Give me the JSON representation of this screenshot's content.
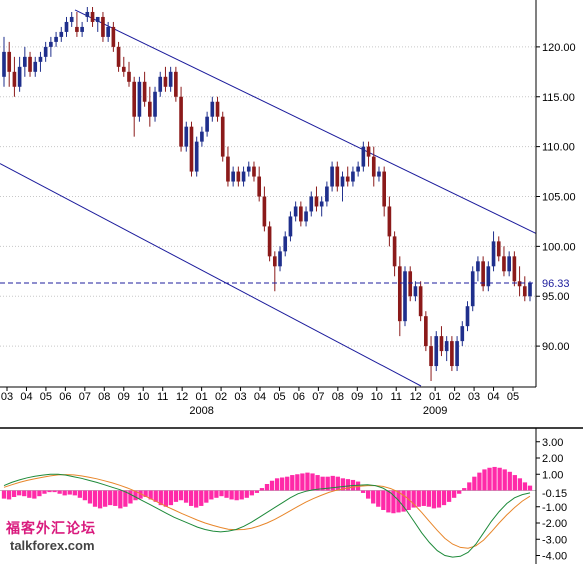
{
  "colors": {
    "bull_body": "#1f2f8c",
    "bear_body": "#8b1a1a",
    "channel": "#1c1c9c",
    "macd_hist": "#ff2aa8",
    "macd_line": "#1e8a3a",
    "signal_line": "#e8862a",
    "grid": "#c8c8c8",
    "axis_text": "#000000",
    "level_line": "#1c1c9c"
  },
  "chart_data": [
    {
      "type": "candlestick",
      "title": "",
      "xlabel": "",
      "ylabel": "",
      "ylim": [
        86.0,
        124.5
      ],
      "y_ticks": [
        "120.00",
        "115.00",
        "110.00",
        "105.00",
        "100.00",
        "95.00",
        "90.00"
      ],
      "y_tick_values": [
        120,
        115,
        110,
        105,
        100,
        95,
        90
      ],
      "grid": "horizontal dotted",
      "x_tick_labels": [
        "03",
        "04",
        "05",
        "06",
        "07",
        "08",
        "09",
        "10",
        "11",
        "12",
        "01",
        "02",
        "03",
        "04",
        "05",
        "06",
        "07",
        "08",
        "09",
        "10",
        "11",
        "12",
        "01",
        "02",
        "03",
        "04",
        "05"
      ],
      "x_years": [
        {
          "label": "2008",
          "tick_index": 10
        },
        {
          "label": "2009",
          "tick_index": 22
        }
      ],
      "current_level": {
        "label": "96.33",
        "value": 96.33
      },
      "channel_lines": [
        {
          "start_value": 123.7,
          "end_value": 101.3
        },
        {
          "start_value": 108.3,
          "end_value": 86.0
        }
      ],
      "candles": [
        [
          117,
          121,
          116,
          119.5
        ],
        [
          119.5,
          120.5,
          116,
          117.5
        ],
        [
          117.5,
          119,
          115,
          116
        ],
        [
          116,
          119,
          115.5,
          118
        ],
        [
          118,
          120,
          117,
          119
        ],
        [
          119,
          119.5,
          117,
          117.5
        ],
        [
          117.5,
          119,
          117,
          118.5
        ],
        [
          118.5,
          119.5,
          117.5,
          119
        ],
        [
          119,
          120.5,
          118.5,
          120
        ],
        [
          120,
          121,
          119,
          120.5
        ],
        [
          120.5,
          121.5,
          120,
          121
        ],
        [
          121,
          122,
          120.5,
          121.5
        ],
        [
          121.5,
          123,
          121,
          122.5
        ],
        [
          122.5,
          123.5,
          122,
          123
        ],
        [
          122,
          123.5,
          121,
          121.5
        ],
        [
          121.5,
          122.5,
          121,
          122
        ],
        [
          123,
          124,
          122.5,
          123.5
        ],
        [
          123.5,
          124,
          122,
          122.5
        ],
        [
          122.5,
          123,
          121.5,
          123
        ],
        [
          123,
          123.5,
          120.5,
          121
        ],
        [
          121,
          122.5,
          120.5,
          122
        ],
        [
          122,
          122.5,
          119.5,
          120
        ],
        [
          120,
          120.5,
          117.5,
          118
        ],
        [
          118,
          119,
          117,
          117.5
        ],
        [
          117.5,
          118.5,
          116,
          116.5
        ],
        [
          116.5,
          117,
          111,
          113
        ],
        [
          113,
          117,
          112.5,
          116.5
        ],
        [
          116.5,
          117.5,
          114,
          114.5
        ],
        [
          114.5,
          116,
          112,
          113
        ],
        [
          113,
          116,
          112.5,
          115.5
        ],
        [
          115.5,
          117.5,
          115,
          117
        ],
        [
          117,
          118,
          115.5,
          116
        ],
        [
          116,
          118,
          115.5,
          117.5
        ],
        [
          117.5,
          118,
          114.5,
          115
        ],
        [
          115,
          116,
          109.5,
          110
        ],
        [
          110,
          112.5,
          109.5,
          112
        ],
        [
          112,
          112.5,
          107,
          107.5
        ],
        [
          107.5,
          111,
          107,
          110.5
        ],
        [
          110.5,
          112,
          110,
          111.5
        ],
        [
          111.5,
          113.5,
          111,
          113
        ],
        [
          113,
          115,
          112.5,
          114.5
        ],
        [
          114.5,
          115,
          112.5,
          113
        ],
        [
          113,
          113.5,
          108.5,
          109
        ],
        [
          109,
          110,
          106,
          106.5
        ],
        [
          106.5,
          108,
          106,
          107.5
        ],
        [
          107.5,
          108,
          106,
          106.5
        ],
        [
          106.5,
          108,
          106,
          107.5
        ],
        [
          107.5,
          108.5,
          107,
          108
        ],
        [
          108,
          108.5,
          106.5,
          107
        ],
        [
          107,
          108,
          104.5,
          105
        ],
        [
          105,
          106,
          101.5,
          102
        ],
        [
          102,
          102.5,
          98.5,
          99
        ],
        [
          99,
          99.5,
          95.5,
          98
        ],
        [
          98,
          100,
          97.5,
          99.5
        ],
        [
          99.5,
          101.5,
          99,
          101
        ],
        [
          101,
          103.5,
          100.5,
          103
        ],
        [
          103,
          104.5,
          102.5,
          104
        ],
        [
          104,
          104.5,
          102,
          102.5
        ],
        [
          102.5,
          104,
          102,
          103.5
        ],
        [
          103.5,
          105.5,
          103,
          105
        ],
        [
          105,
          106,
          103.5,
          104
        ],
        [
          104,
          105,
          103,
          104.5
        ],
        [
          104.5,
          106.5,
          104,
          106
        ],
        [
          106,
          108.5,
          105.5,
          108
        ],
        [
          108,
          108.5,
          105.5,
          106
        ],
        [
          106,
          107.5,
          104.5,
          107
        ],
        [
          107,
          108,
          106,
          106.5
        ],
        [
          106.5,
          108,
          106,
          107.5
        ],
        [
          107.5,
          108.5,
          107,
          108
        ],
        [
          108,
          110.5,
          107.5,
          110
        ],
        [
          110,
          110.5,
          108,
          109
        ],
        [
          109,
          110,
          106,
          107
        ],
        [
          107,
          108,
          106.5,
          107.5
        ],
        [
          107.5,
          108,
          103,
          104
        ],
        [
          104,
          105,
          100,
          101
        ],
        [
          101,
          101.5,
          97,
          98
        ],
        [
          98,
          99,
          91,
          92.5
        ],
        [
          92.5,
          98,
          92,
          97.5
        ],
        [
          97.5,
          98,
          94.5,
          95
        ],
        [
          95,
          96.5,
          94.5,
          96
        ],
        [
          96,
          96.5,
          92.5,
          93
        ],
        [
          93,
          93.5,
          89.5,
          90
        ],
        [
          90,
          91,
          86.5,
          88
        ],
        [
          88,
          91.5,
          87.5,
          91
        ],
        [
          91,
          92,
          89,
          89.5
        ],
        [
          89.5,
          91,
          88.5,
          90.5
        ],
        [
          90.5,
          91,
          87.5,
          88
        ],
        [
          88,
          91,
          87.5,
          90.5
        ],
        [
          90.5,
          92.5,
          90,
          92
        ],
        [
          92,
          94.5,
          91.5,
          94
        ],
        [
          94,
          98,
          93.5,
          97.5
        ],
        [
          97.5,
          99,
          96.5,
          98.5
        ],
        [
          98.5,
          99,
          95.5,
          96
        ],
        [
          96,
          98.5,
          95.5,
          98
        ],
        [
          98,
          101.5,
          97.5,
          100.5
        ],
        [
          100.5,
          101,
          98.5,
          99
        ],
        [
          99,
          100,
          97,
          97.5
        ],
        [
          97.5,
          99.5,
          97,
          99
        ],
        [
          99,
          99.5,
          96,
          96.5
        ],
        [
          96.5,
          98,
          95,
          96
        ],
        [
          96,
          97,
          94.5,
          95
        ],
        [
          95,
          96.5,
          94.5,
          96.3
        ]
      ]
    },
    {
      "type": "macd",
      "title": "",
      "ylim": [
        -4.4,
        3.6
      ],
      "y_ticks": [
        "3.00",
        "2.00",
        "1.00",
        "-1.00",
        "-2.00",
        "-3.00",
        "-4.00"
      ],
      "y_tick_values": [
        3,
        2,
        1,
        -1,
        -2,
        -3,
        -4
      ],
      "current_level": {
        "label": "-0.15",
        "value": -0.15
      },
      "macd_line": [
        0.3,
        0.5,
        0.65,
        0.78,
        0.88,
        0.95,
        1.0,
        1.0,
        0.95,
        0.85,
        0.75,
        0.62,
        0.5,
        0.35,
        0.2,
        0.05,
        -0.15,
        -0.4,
        -0.65,
        -0.9,
        -1.15,
        -1.4,
        -1.65,
        -1.85,
        -2.05,
        -2.25,
        -2.4,
        -2.5,
        -2.55,
        -2.5,
        -2.4,
        -2.2,
        -1.95,
        -1.65,
        -1.35,
        -1.05,
        -0.75,
        -0.45,
        -0.2,
        -0.05,
        0.05,
        0.1,
        0.15,
        0.2,
        0.25,
        0.3,
        0.33,
        0.35,
        0.3,
        0.15,
        -0.15,
        -0.6,
        -1.2,
        -1.9,
        -2.6,
        -3.2,
        -3.7,
        -4.0,
        -4.1,
        -4.05,
        -3.8,
        -3.3,
        -2.6,
        -1.9,
        -1.3,
        -0.8,
        -0.45,
        -0.25,
        -0.15
      ],
      "signal_line": [
        0.2,
        0.35,
        0.5,
        0.62,
        0.72,
        0.82,
        0.9,
        0.96,
        0.98,
        0.96,
        0.9,
        0.82,
        0.72,
        0.6,
        0.47,
        0.32,
        0.15,
        -0.05,
        -0.28,
        -0.52,
        -0.75,
        -0.98,
        -1.2,
        -1.42,
        -1.62,
        -1.82,
        -2.0,
        -2.15,
        -2.28,
        -2.38,
        -2.42,
        -2.4,
        -2.32,
        -2.18,
        -2.0,
        -1.78,
        -1.52,
        -1.25,
        -0.98,
        -0.72,
        -0.5,
        -0.3,
        -0.12,
        0.02,
        0.12,
        0.2,
        0.26,
        0.3,
        0.3,
        0.25,
        0.12,
        -0.1,
        -0.42,
        -0.85,
        -1.35,
        -1.9,
        -2.45,
        -2.95,
        -3.3,
        -3.5,
        -3.55,
        -3.4,
        -3.05,
        -2.55,
        -2.0,
        -1.5,
        -1.05,
        -0.65,
        -0.35
      ],
      "histogram": [
        -0.5,
        -0.55,
        -0.4,
        -0.3,
        -0.35,
        -0.45,
        -0.5,
        -0.35,
        -0.2,
        -0.1,
        -0.1,
        -0.2,
        -0.3,
        -0.25,
        -0.3,
        -0.45,
        -0.6,
        -0.8,
        -1.0,
        -1.1,
        -1.0,
        -0.9,
        -0.95,
        -1.1,
        -1.0,
        -0.8,
        -0.6,
        -0.5,
        -0.4,
        -0.55,
        -0.7,
        -0.9,
        -1.0,
        -0.9,
        -0.7,
        -0.6,
        -0.75,
        -0.95,
        -1.05,
        -0.95,
        -0.75,
        -0.55,
        -0.45,
        -0.35,
        -0.45,
        -0.55,
        -0.6,
        -0.55,
        -0.45,
        -0.3,
        -0.15,
        0.15,
        0.4,
        0.6,
        0.75,
        0.8,
        0.85,
        0.95,
        1.0,
        1.05,
        1.1,
        1.05,
        0.95,
        0.85,
        0.85,
        0.9,
        0.85,
        0.75,
        0.7,
        0.65,
        0.55,
        -0.15,
        -0.5,
        -0.8,
        -1.0,
        -1.2,
        -1.35,
        -1.4,
        -1.35,
        -1.3,
        -1.2,
        -1.05,
        -1.0,
        -0.95,
        -1.0,
        -1.1,
        -1.05,
        -0.9,
        -0.7,
        -0.45,
        -0.2,
        0.15,
        0.5,
        0.85,
        1.1,
        1.3,
        1.4,
        1.45,
        1.4,
        1.3,
        1.15,
        0.95,
        0.75,
        0.5,
        0.3
      ]
    }
  ],
  "watermark": {
    "chinese_text": "福客外汇论坛",
    "site": "talkforex.com"
  }
}
